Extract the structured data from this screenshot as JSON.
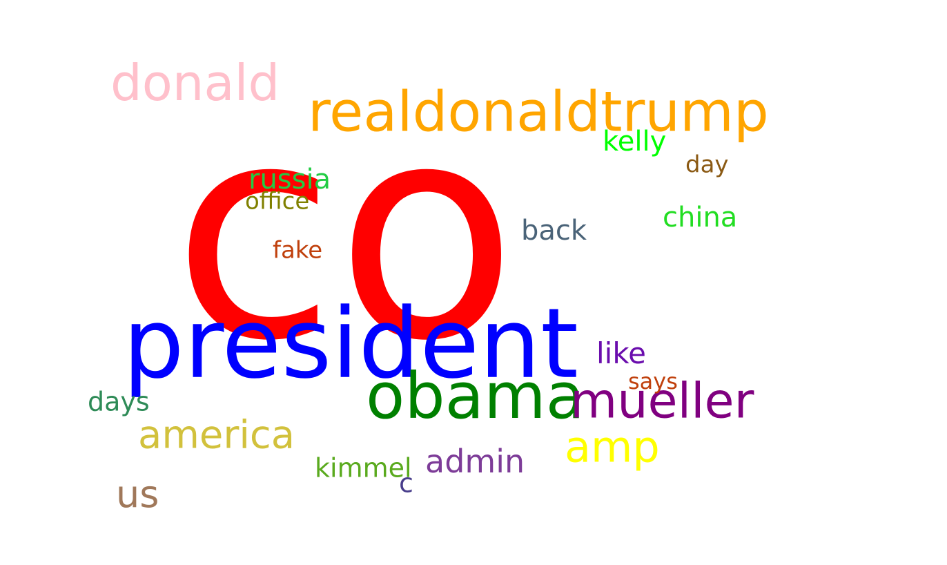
{
  "words": [
    {
      "text": "co",
      "color": "#ff0000"
    },
    {
      "text": "president",
      "color": "#0000ff"
    },
    {
      "text": "realdonaldtrump",
      "color": "#ffa500"
    },
    {
      "text": "obama",
      "color": "#008000"
    },
    {
      "text": "donald",
      "color": "#ffc0cb"
    },
    {
      "text": "mueller",
      "color": "#800080"
    },
    {
      "text": "america",
      "color": "#d2c13c"
    },
    {
      "text": "amp",
      "color": "#ffff00"
    },
    {
      "text": "admin",
      "color": "#7d3c98"
    },
    {
      "text": "us",
      "color": "#a0785a"
    },
    {
      "text": "russia",
      "color": "#22cc44"
    },
    {
      "text": "office",
      "color": "#808000"
    },
    {
      "text": "fake",
      "color": "#c0400c"
    },
    {
      "text": "back",
      "color": "#4a6378"
    },
    {
      "text": "kelly",
      "color": "#00ff00"
    },
    {
      "text": "day",
      "color": "#8b5a14"
    },
    {
      "text": "china",
      "color": "#22dd22"
    },
    {
      "text": "like",
      "color": "#6a0dad"
    },
    {
      "text": "says",
      "color": "#c0400c"
    },
    {
      "text": "days",
      "color": "#2e8b57"
    },
    {
      "text": "kimmel",
      "color": "#5aaa1e"
    },
    {
      "text": "c",
      "color": "#483d8b"
    }
  ]
}
